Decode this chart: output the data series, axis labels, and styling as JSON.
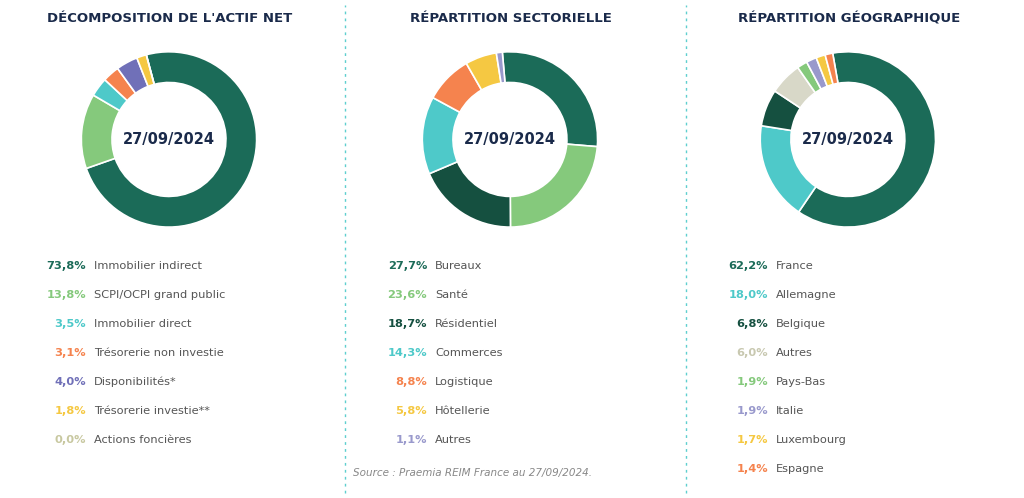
{
  "background_color": "#ffffff",
  "date_label": "27/09/2024",
  "source_text": "Source : Praemia REIM France au 27/09/2024.",
  "chart1": {
    "title": "DÉCOMPOSITION DE L'ACTIF NET",
    "values": [
      73.8,
      13.8,
      3.5,
      3.1,
      4.0,
      1.8,
      0.0
    ],
    "colors": [
      "#1b6b58",
      "#85c97c",
      "#4ec9c9",
      "#f5834e",
      "#7070b8",
      "#f5c842",
      "#c8c8a0"
    ],
    "labels": [
      "Immobilier indirect",
      "SCPI/OCPI grand public",
      "Immobilier direct",
      "Trésorerie non investie",
      "Disponibilités*",
      "Trésorerie investie**",
      "Actions foncières"
    ],
    "pcts": [
      "73,8%",
      "13,8%",
      "3,5%",
      "3,1%",
      "4,0%",
      "1,8%",
      "0,0%"
    ],
    "pct_colors": [
      "#1b6b58",
      "#85c97c",
      "#4ec9c9",
      "#f5834e",
      "#7070b8",
      "#f5c842",
      "#c8c8a0"
    ],
    "start_angle": 105
  },
  "chart2": {
    "title": "RÉPARTITION SECTORIELLE",
    "values": [
      27.7,
      23.6,
      18.7,
      14.3,
      8.8,
      5.8,
      1.1
    ],
    "colors": [
      "#1b6b58",
      "#85c97c",
      "#155040",
      "#4ec9c9",
      "#f5834e",
      "#f5c842",
      "#9999cc"
    ],
    "labels": [
      "Bureaux",
      "Santé",
      "Résidentiel",
      "Commerces",
      "Logistique",
      "Hôtellerie",
      "Autres"
    ],
    "pcts": [
      "27,7%",
      "23,6%",
      "18,7%",
      "14,3%",
      "8,8%",
      "5,8%",
      "1,1%"
    ],
    "pct_colors": [
      "#1b6b58",
      "#85c97c",
      "#155040",
      "#4ec9c9",
      "#f5834e",
      "#f5c842",
      "#9999cc"
    ],
    "start_angle": 95
  },
  "chart3": {
    "title": "RÉPARTITION GÉOGRAPHIQUE",
    "values": [
      62.2,
      18.0,
      6.8,
      6.0,
      1.9,
      1.9,
      1.7,
      1.4
    ],
    "colors": [
      "#1b6b58",
      "#4ec9c9",
      "#155040",
      "#d8d8c8",
      "#85c97c",
      "#9999cc",
      "#f5c842",
      "#f5834e"
    ],
    "labels": [
      "France",
      "Allemagne",
      "Belgique",
      "Autres",
      "Pays-Bas",
      "Italie",
      "Luxembourg",
      "Espagne"
    ],
    "pcts": [
      "62,2%",
      "18,0%",
      "6,8%",
      "6,0%",
      "1,9%",
      "1,9%",
      "1,7%",
      "1,4%"
    ],
    "pct_colors": [
      "#1b6b58",
      "#4ec9c9",
      "#155040",
      "#c8c8b0",
      "#85c97c",
      "#9999cc",
      "#f5c842",
      "#f5834e"
    ],
    "start_angle": 100
  },
  "divider_color": "#5ecfcf",
  "title_color": "#1a2a4a",
  "legend_text_color": "#555555"
}
